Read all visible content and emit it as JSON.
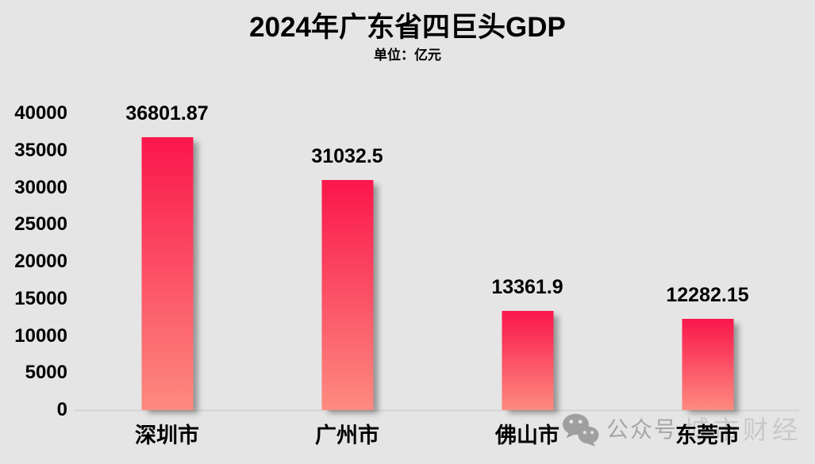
{
  "chart_data": {
    "type": "bar",
    "title": "2024年广东省四巨头GDP",
    "subtitle": "单位：亿元",
    "categories": [
      "深圳市",
      "广州市",
      "佛山市",
      "东莞市"
    ],
    "values": [
      36801.87,
      31032.5,
      13361.9,
      12282.15
    ],
    "value_labels": [
      "36801.87",
      "31032.5",
      "13361.9",
      "12282.15"
    ],
    "ylim": [
      0,
      40000
    ],
    "ytick_step": 5000,
    "ytick_labels": [
      "0",
      "5000",
      "10000",
      "15000",
      "20000",
      "25000",
      "30000",
      "35000",
      "40000"
    ],
    "xlabel": "",
    "ylabel": "",
    "grid": false,
    "legend_position": "none",
    "colors": {
      "bar_gradient_top": "#fa164b",
      "bar_gradient_bottom": "#fd8b80",
      "background": "#e5e5e5",
      "axis_line": "#d9d9d9",
      "text": "#000000"
    }
  },
  "watermark": {
    "icon": "wechat-icon",
    "label": "公众号",
    "brand": "城市财经",
    "icon_color": "#9f9f9f",
    "label_color": "#a6a6a6",
    "brand_color": "#c9c9c9"
  }
}
